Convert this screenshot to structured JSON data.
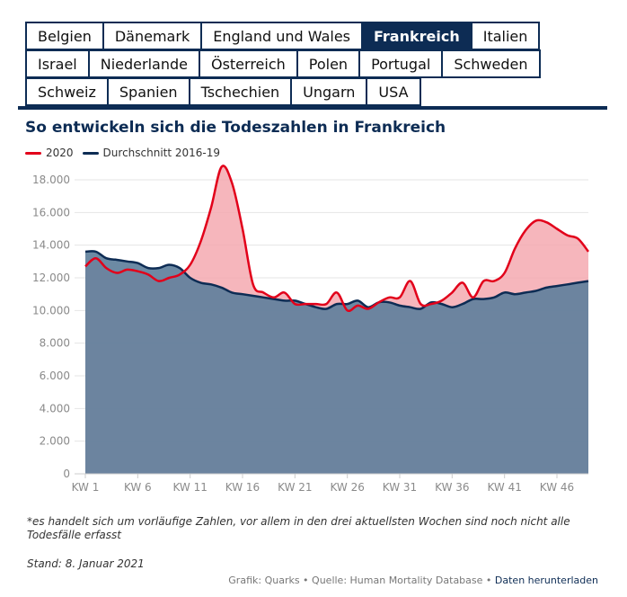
{
  "tabs": [
    [
      "Belgien",
      "Dänemark",
      "England und Wales",
      "Frankreich",
      "Italien"
    ],
    [
      "Israel",
      "Niederlande",
      "Österreich",
      "Polen",
      "Portugal",
      "Schweden"
    ],
    [
      "Schweiz",
      "Spanien",
      "Tschechien",
      "Ungarn",
      "USA"
    ]
  ],
  "active_tab": "Frankreich",
  "colors": {
    "series_2020": "#e2001a",
    "area_2020": "#f4a9b0",
    "series_avg": "#0d2c54",
    "area_avg": "#60809c",
    "tab_border": "#0d2c54"
  },
  "chart_data": {
    "type": "area",
    "title": "So entwickeln sich die Todeszahlen in Frankreich",
    "xlabel": "",
    "ylabel": "",
    "x_ticks": [
      "KW 1",
      "KW 6",
      "KW 11",
      "KW 16",
      "KW 21",
      "KW 26",
      "KW 31",
      "KW 36",
      "KW 41",
      "KW 46"
    ],
    "y_ticks": [
      "0",
      "2.000",
      "4.000",
      "6.000",
      "8.000",
      "10.000",
      "12.000",
      "14.000",
      "16.000",
      "18.000"
    ],
    "xlim": [
      1,
      49
    ],
    "ylim": [
      0,
      18000
    ],
    "grid": true,
    "legend_position": "top-left",
    "series": [
      {
        "name": "2020",
        "x": [
          1,
          2,
          3,
          4,
          5,
          6,
          7,
          8,
          9,
          10,
          11,
          12,
          13,
          14,
          15,
          16,
          17,
          18,
          19,
          20,
          21,
          22,
          23,
          24,
          25,
          26,
          27,
          28,
          29,
          30,
          31,
          32,
          33,
          34,
          35,
          36,
          37,
          38,
          39,
          40,
          41,
          42,
          43,
          44,
          45,
          46,
          47,
          48,
          49
        ],
        "values": [
          12700,
          13200,
          12600,
          12300,
          12500,
          12400,
          12200,
          11800,
          12000,
          12200,
          12800,
          14200,
          16300,
          18800,
          17800,
          15000,
          11600,
          11100,
          10800,
          11100,
          10400,
          10400,
          10400,
          10400,
          11100,
          10000,
          10300,
          10100,
          10500,
          10800,
          10800,
          11800,
          10400,
          10400,
          10600,
          11100,
          11700,
          10800,
          11800,
          11800,
          12300,
          13800,
          14900,
          15500,
          15400,
          15000,
          14600,
          14400,
          13600
        ]
      },
      {
        "name": "Durchschnitt 2016-19",
        "x": [
          1,
          2,
          3,
          4,
          5,
          6,
          7,
          8,
          9,
          10,
          11,
          12,
          13,
          14,
          15,
          16,
          17,
          18,
          19,
          20,
          21,
          22,
          23,
          24,
          25,
          26,
          27,
          28,
          29,
          30,
          31,
          32,
          33,
          34,
          35,
          36,
          37,
          38,
          39,
          40,
          41,
          42,
          43,
          44,
          45,
          46,
          47,
          48,
          49
        ],
        "values": [
          13600,
          13600,
          13200,
          13100,
          13000,
          12900,
          12600,
          12600,
          12800,
          12600,
          12000,
          11700,
          11600,
          11400,
          11100,
          11000,
          10900,
          10800,
          10700,
          10600,
          10600,
          10400,
          10200,
          10100,
          10400,
          10400,
          10600,
          10200,
          10500,
          10500,
          10300,
          10200,
          10100,
          10500,
          10400,
          10200,
          10400,
          10700,
          10700,
          10800,
          11100,
          11000,
          11100,
          11200,
          11400,
          11500,
          11600,
          11700,
          11800
        ]
      }
    ]
  },
  "footnote": "*es handelt sich um vorläufige Zahlen, vor allem in den drei aktuellsten Wochen sind noch nicht alle Todesfälle erfasst",
  "stand": "Stand: 8. Januar 2021",
  "credits": {
    "text": "Grafik: Quarks • Quelle: Human Mortality Database •",
    "link": "Daten herunterladen"
  }
}
